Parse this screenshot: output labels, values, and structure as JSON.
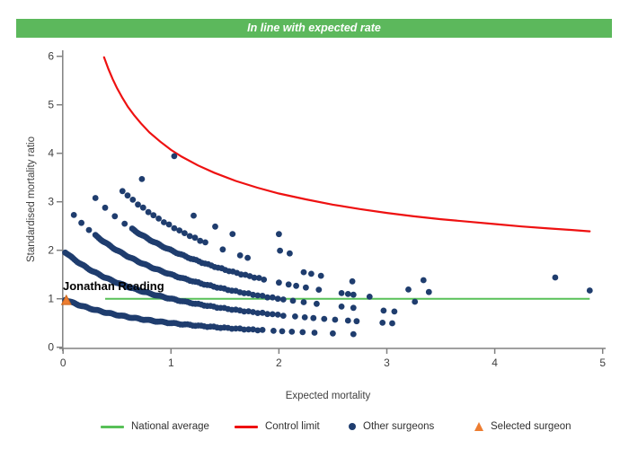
{
  "header": {
    "title": "In line with expected rate",
    "bg_color": "#5CB85C",
    "text_color": "#FFFFFF"
  },
  "chart_data": {
    "type": "scatter",
    "title": "",
    "xlabel": "Expected mortality",
    "ylabel": "Standardised mortality ratio",
    "xlim": [
      0,
      5
    ],
    "ylim": [
      0,
      6
    ],
    "x_ticks": [
      0,
      1,
      2,
      3,
      4,
      5
    ],
    "y_ticks": [
      0,
      1,
      2,
      3,
      4,
      5,
      6
    ],
    "grid": false,
    "axis_color": "#808080",
    "tick_label_color": "#404040",
    "national_average": {
      "label": "National average",
      "y": 1,
      "x_start": 0.39,
      "x_end": 4.88,
      "color": "#58C058"
    },
    "control_limit": {
      "label": "Control limit",
      "color": "#EE1111",
      "formula": "y = 1 + 3.07/sqrt(x)",
      "points": [
        [
          0.38,
          5.98
        ],
        [
          0.42,
          5.74
        ],
        [
          0.46,
          5.53
        ],
        [
          0.5,
          5.34
        ],
        [
          0.55,
          5.14
        ],
        [
          0.6,
          4.96
        ],
        [
          0.66,
          4.78
        ],
        [
          0.72,
          4.62
        ],
        [
          0.8,
          4.43
        ],
        [
          0.9,
          4.24
        ],
        [
          1.0,
          4.07
        ],
        [
          1.1,
          3.93
        ],
        [
          1.25,
          3.75
        ],
        [
          1.4,
          3.6
        ],
        [
          1.6,
          3.43
        ],
        [
          1.8,
          3.29
        ],
        [
          2.0,
          3.17
        ],
        [
          2.25,
          3.05
        ],
        [
          2.5,
          2.94
        ],
        [
          2.75,
          2.85
        ],
        [
          3.0,
          2.77
        ],
        [
          3.25,
          2.7
        ],
        [
          3.5,
          2.64
        ],
        [
          3.75,
          2.59
        ],
        [
          4.0,
          2.54
        ],
        [
          4.25,
          2.49
        ],
        [
          4.5,
          2.45
        ],
        [
          4.7,
          2.42
        ],
        [
          4.88,
          2.39
        ]
      ]
    },
    "other_surgeons": {
      "label": "Other surgeons",
      "color": "#1F3D6E",
      "marker_radius": 3.4,
      "curve_family": "SMR = (deaths+1)/(expected+1)",
      "bands": [
        {
          "deaths": 0,
          "dense_x": [
            0.02,
            1.88
          ],
          "sparse_x": [
            1.95,
            2.03,
            2.12,
            2.22,
            2.33,
            2.5,
            2.69
          ]
        },
        {
          "deaths": 1,
          "dense_x": [
            0.02,
            2.06
          ],
          "sparse_x": [
            2.15,
            2.24,
            2.32,
            2.42,
            2.52,
            2.64,
            2.72,
            2.96,
            3.05
          ]
        },
        {
          "deaths": 2,
          "lead_x": [
            0.1,
            0.17,
            0.24
          ],
          "dense_x": [
            0.3,
            2.06
          ],
          "sparse_x": [
            2.13,
            2.23,
            2.35,
            2.58,
            2.69,
            2.97,
            3.07
          ]
        },
        {
          "deaths": 3,
          "lead_x": [
            0.3,
            0.39,
            0.48,
            0.57
          ],
          "dense_x": [
            0.64,
            1.9
          ],
          "sparse_x": [
            2.0,
            2.09,
            2.16,
            2.25,
            2.37,
            2.58,
            2.64,
            2.69,
            2.84,
            3.26
          ]
        },
        {
          "deaths": 4,
          "dense_x": [
            0.55,
            1.32
          ],
          "dot_step": 0.048,
          "sparse_x": [
            1.48,
            1.64,
            1.71,
            2.23,
            2.3,
            2.39,
            2.68,
            3.2,
            3.39
          ]
        },
        {
          "deaths": 5,
          "sparse_x": [
            0.73,
            1.21,
            1.41,
            1.57,
            2.01,
            2.1,
            3.34
          ]
        },
        {
          "deaths": 6,
          "sparse_x": [
            2.0
          ]
        },
        {
          "deaths": 7,
          "sparse_x": [
            1.03,
            4.56
          ]
        }
      ],
      "extra_points": [
        [
          4.88,
          1.17
        ]
      ]
    },
    "selected_surgeon": {
      "label": "Jonathan Reading",
      "legend_label": "Selected surgeon",
      "x": 0.03,
      "y": 0.97,
      "color": "#ED7D31",
      "edge_color": "#C9661C"
    }
  },
  "legend": {
    "items": [
      {
        "label": "National average",
        "swatch": "line",
        "color": "#58C058"
      },
      {
        "label": "Control limit",
        "swatch": "line",
        "color": "#EE1111"
      },
      {
        "label": "Other surgeons",
        "swatch": "dot",
        "color": "#1F3D6E"
      },
      {
        "label": "Selected surgeon",
        "swatch": "triangle",
        "color": "#ED7D31"
      }
    ]
  }
}
